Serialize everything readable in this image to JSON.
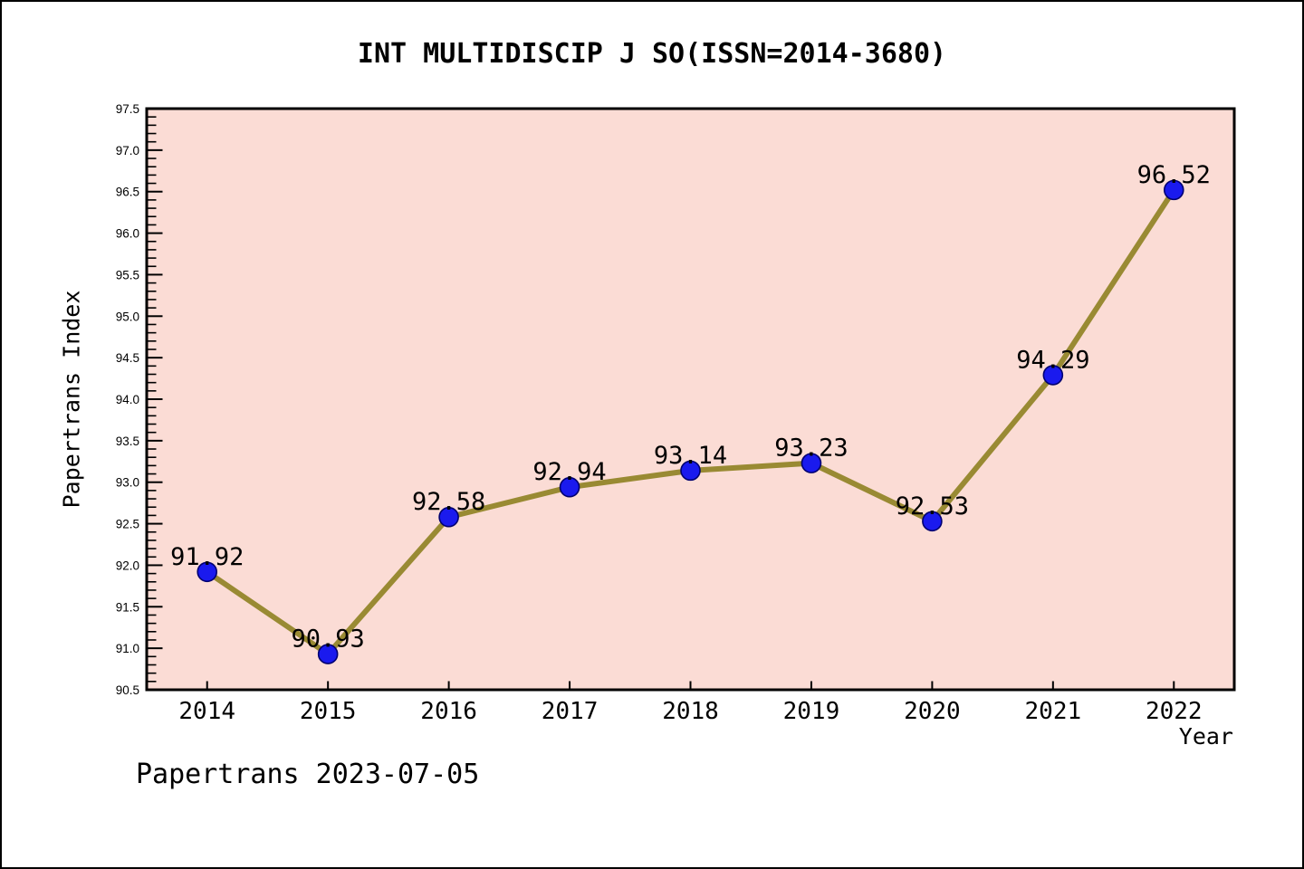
{
  "chart_data": {
    "type": "line",
    "title": "INT MULTIDISCIP J SO(ISSN=2014-3680)",
    "xlabel": "Year",
    "ylabel": "Papertrans Index",
    "x": [
      2014,
      2015,
      2016,
      2017,
      2018,
      2019,
      2020,
      2021,
      2022
    ],
    "values": [
      91.92,
      90.93,
      92.58,
      92.94,
      93.14,
      93.23,
      92.53,
      94.29,
      96.52
    ],
    "point_labels": [
      "91.92",
      "90.93",
      "92.58",
      "92.94",
      "93.14",
      "93.23",
      "92.53",
      "94.29",
      "96.52"
    ],
    "xticks": [
      2014,
      2015,
      2016,
      2017,
      2018,
      2019,
      2020,
      2021,
      2022
    ],
    "yticks": [
      90.5,
      91.0,
      91.5,
      92.0,
      92.5,
      93.0,
      93.5,
      94.0,
      94.5,
      95.0,
      95.5,
      96.0,
      96.5,
      97.0,
      97.5
    ],
    "xlim": [
      2013.5,
      2022.5
    ],
    "ylim": [
      90.5,
      97.5
    ],
    "y_minor_step": 0.1,
    "grid": false,
    "legend": null,
    "colors": {
      "plot_bg": "#fbdcd5",
      "line": "#998a33",
      "marker_fill": "#1a1aee",
      "marker_edge": "#000070",
      "axis": "#000000",
      "text": "#000000"
    }
  },
  "footer": {
    "label": "Papertrans 2023-07-05"
  }
}
